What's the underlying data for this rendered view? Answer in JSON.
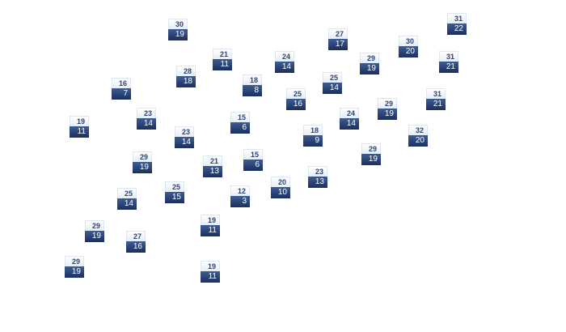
{
  "colors": {
    "high_bg": "#e6edf8",
    "high_text": "#2d4677",
    "low_bg": "#1b2f5e",
    "low_text": "#ffffff"
  },
  "stations": [
    {
      "high": "30",
      "low": "19"
    },
    {
      "high": "21",
      "low": "11"
    },
    {
      "high": "24",
      "low": "14"
    },
    {
      "high": "28",
      "low": "18"
    },
    {
      "high": "16",
      "low": "7"
    },
    {
      "high": "18",
      "low": "8"
    },
    {
      "high": "25",
      "low": "16"
    },
    {
      "high": "23",
      "low": "14"
    },
    {
      "high": "19",
      "low": "11"
    },
    {
      "high": "15",
      "low": "6"
    },
    {
      "high": "23",
      "low": "14"
    },
    {
      "high": "29",
      "low": "19"
    },
    {
      "high": "21",
      "low": "13"
    },
    {
      "high": "15",
      "low": "6"
    },
    {
      "high": "31",
      "low": "22"
    },
    {
      "high": "27",
      "low": "17"
    },
    {
      "high": "30",
      "low": "20"
    },
    {
      "high": "29",
      "low": "19"
    },
    {
      "high": "31",
      "low": "21"
    },
    {
      "high": "25",
      "low": "14"
    },
    {
      "high": "31",
      "low": "21"
    },
    {
      "high": "29",
      "low": "19"
    },
    {
      "high": "24",
      "low": "14"
    },
    {
      "high": "32",
      "low": "20"
    },
    {
      "high": "18",
      "low": "9"
    },
    {
      "high": "29",
      "low": "19"
    },
    {
      "high": "23",
      "low": "13"
    },
    {
      "high": "20",
      "low": "10"
    },
    {
      "high": "25",
      "low": "15"
    },
    {
      "high": "25",
      "low": "14"
    },
    {
      "high": "12",
      "low": "3"
    },
    {
      "high": "19",
      "low": "11"
    },
    {
      "high": "29",
      "low": "19"
    },
    {
      "high": "27",
      "low": "16"
    },
    {
      "high": "29",
      "low": "19"
    },
    {
      "high": "19",
      "low": "11"
    }
  ]
}
